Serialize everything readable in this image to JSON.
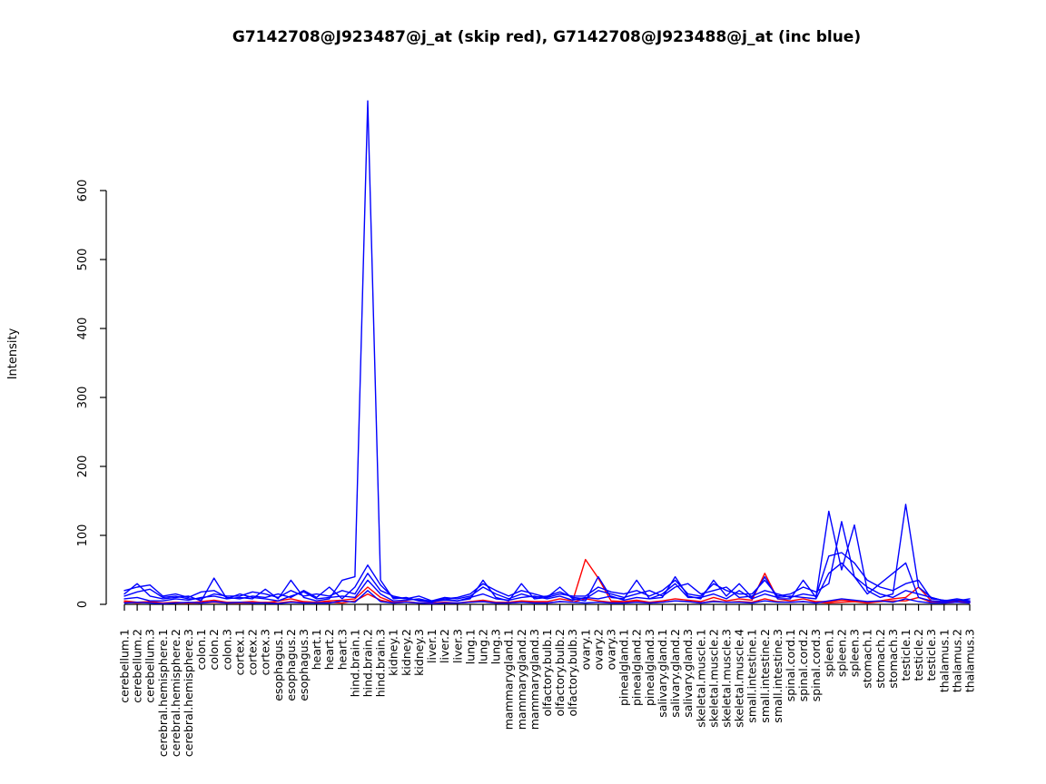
{
  "figure": {
    "title": "G7142708@J923487@j_at (skip red), G7142708@J923488@j_at (inc blue)",
    "ylabel": "Intensity"
  },
  "chart_data": {
    "type": "line",
    "title": "G7142708@J923487@j_at (skip red), G7142708@J923488@j_at (inc blue)",
    "xlabel": "",
    "ylabel": "Intensity",
    "ylim": [
      0,
      730
    ],
    "yticks": [
      0,
      100,
      200,
      300,
      400,
      500,
      600
    ],
    "grid": false,
    "legend": "none (encoded in title: skip = red, inc = blue)",
    "colors": {
      "skip": "#FF0000",
      "inc": "#0000FF",
      "axis": "#000000",
      "background": "#FFFFFF"
    },
    "categories": [
      "cerebellum.1",
      "cerebellum.2",
      "cerebellum.3",
      "cerebral.hemisphere.1",
      "cerebral.hemisphere.2",
      "cerebral.hemisphere.3",
      "colon.1",
      "colon.2",
      "colon.3",
      "cortex.1",
      "cortex.2",
      "cortex.3",
      "esophagus.1",
      "esophagus.2",
      "esophagus.3",
      "heart.1",
      "heart.2",
      "heart.3",
      "hind.brain.1",
      "hind.brain.2",
      "hind.brain.3",
      "kidney.1",
      "kidney.2",
      "kidney.3",
      "liver.1",
      "liver.2",
      "liver.3",
      "lung.1",
      "lung.2",
      "lung.3",
      "mammarygland.1",
      "mammarygland.2",
      "mammarygland.3",
      "olfactory.bulb.1",
      "olfactory.bulb.2",
      "olfactory.bulb.3",
      "ovary.1",
      "ovary.2",
      "ovary.3",
      "pinealgland.1",
      "pinealgland.2",
      "pinealgland.3",
      "salivary.gland.1",
      "salivary.gland.2",
      "salivary.gland.3",
      "skeletal.muscle.1",
      "skeletal.muscle.2",
      "skeletal.muscle.3",
      "skeletal.muscle.4",
      "small.intestine.1",
      "small.intestine.2",
      "small.intestine.3",
      "spinal.cord.1",
      "spinal.cord.2",
      "spinal.cord.3",
      "spleen.1",
      "spleen.2",
      "spleen.3",
      "stomach.1",
      "stomach.2",
      "stomach.3",
      "testicle.1",
      "testicle.2",
      "testicle.3",
      "thalamus.1",
      "thalamus.2",
      "thalamus.3"
    ],
    "series": [
      {
        "name": "G7142708@J923487@j_at (skip) line 1",
        "color": "#FF0000",
        "values": [
          5,
          3,
          4,
          2,
          3,
          2,
          4,
          6,
          3,
          3,
          4,
          2,
          5,
          8,
          4,
          3,
          5,
          6,
          8,
          25,
          10,
          3,
          4,
          2,
          2,
          3,
          2,
          4,
          6,
          3,
          3,
          5,
          4,
          4,
          8,
          5,
          65,
          38,
          5,
          4,
          6,
          3,
          5,
          8,
          6,
          4,
          10,
          5,
          8,
          6,
          45,
          8,
          5,
          8,
          4,
          4,
          6,
          5,
          3,
          5,
          8,
          10,
          25,
          5,
          3,
          4,
          3
        ]
      },
      {
        "name": "G7142708@J923487@j_at (skip) line 2",
        "color": "#FF0000",
        "values": [
          3,
          2,
          3,
          1,
          2,
          2,
          2,
          3,
          2,
          2,
          2,
          3,
          2,
          4,
          3,
          2,
          3,
          2,
          5,
          15,
          6,
          2,
          3,
          2,
          1,
          2,
          2,
          3,
          4,
          2,
          2,
          3,
          3,
          2,
          4,
          3,
          8,
          5,
          3,
          3,
          4,
          2,
          3,
          5,
          4,
          2,
          5,
          3,
          4,
          3,
          8,
          4,
          3,
          4,
          3,
          2,
          3,
          4,
          2,
          4,
          5,
          5,
          10,
          3,
          2,
          3,
          2
        ]
      },
      {
        "name": "G7142708@J923488@j_at (inc) line 1",
        "color": "#0000FF",
        "values": [
          15,
          30,
          12,
          8,
          10,
          12,
          5,
          38,
          8,
          10,
          8,
          22,
          8,
          35,
          10,
          5,
          8,
          35,
          40,
          730,
          35,
          8,
          10,
          5,
          3,
          8,
          5,
          8,
          35,
          10,
          5,
          30,
          8,
          10,
          25,
          8,
          5,
          40,
          10,
          8,
          35,
          8,
          10,
          40,
          12,
          8,
          35,
          12,
          30,
          10,
          40,
          8,
          8,
          35,
          10,
          135,
          50,
          115,
          20,
          10,
          15,
          145,
          25,
          10,
          5,
          8,
          5
        ]
      },
      {
        "name": "G7142708@J923488@j_at (inc) line 2",
        "color": "#0000FF",
        "values": [
          20,
          25,
          28,
          12,
          15,
          10,
          18,
          20,
          10,
          8,
          12,
          10,
          15,
          10,
          20,
          10,
          25,
          8,
          25,
          57,
          28,
          10,
          8,
          12,
          5,
          10,
          8,
          12,
          25,
          15,
          8,
          15,
          10,
          12,
          18,
          10,
          8,
          20,
          15,
          10,
          15,
          20,
          12,
          25,
          30,
          15,
          20,
          25,
          10,
          12,
          20,
          15,
          10,
          15,
          12,
          70,
          75,
          60,
          35,
          25,
          20,
          30,
          35,
          8,
          6,
          5,
          8
        ]
      },
      {
        "name": "G7142708@J923488@j_at (inc) line 3",
        "color": "#0000FF",
        "values": [
          8,
          10,
          5,
          5,
          8,
          6,
          10,
          12,
          8,
          15,
          10,
          8,
          5,
          12,
          18,
          8,
          10,
          12,
          10,
          35,
          15,
          5,
          6,
          8,
          4,
          6,
          5,
          10,
          15,
          8,
          6,
          10,
          12,
          8,
          12,
          6,
          10,
          8,
          12,
          6,
          10,
          8,
          15,
          30,
          10,
          10,
          15,
          8,
          20,
          8,
          15,
          10,
          12,
          10,
          8,
          45,
          60,
          40,
          15,
          30,
          45,
          60,
          10,
          5,
          4,
          6,
          5
        ]
      },
      {
        "name": "G7142708@J923488@j_at (inc) line 4",
        "color": "#0000FF",
        "values": [
          2,
          3,
          2,
          1,
          2,
          3,
          2,
          4,
          2,
          3,
          2,
          2,
          1,
          3,
          2,
          2,
          2,
          5,
          3,
          20,
          4,
          2,
          3,
          2,
          1,
          2,
          2,
          3,
          4,
          2,
          2,
          3,
          2,
          2,
          4,
          3,
          2,
          3,
          2,
          2,
          3,
          2,
          3,
          5,
          4,
          2,
          4,
          3,
          3,
          2,
          5,
          3,
          3,
          4,
          2,
          5,
          8,
          6,
          4,
          5,
          3,
          8,
          4,
          2,
          2,
          3,
          2
        ]
      },
      {
        "name": "G7142708@J923488@j_at (inc) line 5",
        "color": "#0000FF",
        "values": [
          12,
          18,
          22,
          10,
          12,
          8,
          8,
          15,
          12,
          12,
          18,
          15,
          10,
          20,
          12,
          15,
          12,
          20,
          15,
          45,
          20,
          12,
          8,
          6,
          5,
          8,
          10,
          15,
          30,
          20,
          12,
          20,
          15,
          10,
          15,
          12,
          12,
          25,
          18,
          15,
          20,
          12,
          20,
          35,
          15,
          12,
          30,
          20,
          15,
          15,
          35,
          12,
          15,
          25,
          18,
          30,
          120,
          40,
          25,
          15,
          10,
          20,
          15,
          10,
          5,
          6,
          4
        ]
      }
    ]
  }
}
